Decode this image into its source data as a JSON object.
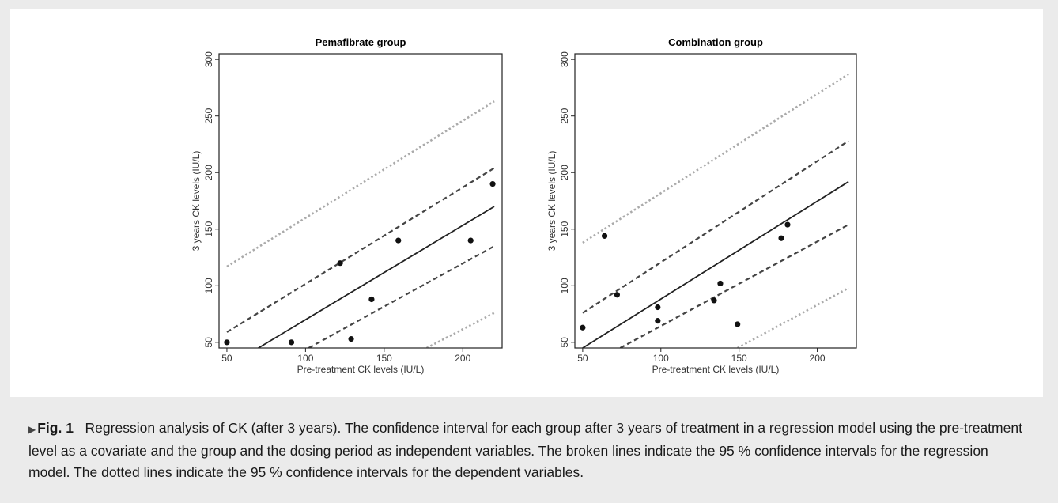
{
  "caption": {
    "marker": "▶",
    "label": "Fig. 1",
    "text": "Regression analysis of CK (after 3 years). The confidence interval for each group after 3 years of treatment in a regression model using the pre-treatment level as a covariate and the group and the dosing period as independent variables. The broken lines indicate the 95 % confidence intervals for the regression model. The dotted lines indicate the 95 % confidence intervals for the dependent variables."
  },
  "chart_data": [
    {
      "type": "scatter",
      "title": "Pemafibrate group",
      "xlabel": "Pre-treatment CK levels (IU/L)",
      "ylabel": "3 years CK levels (IU/L)",
      "xlim": [
        45,
        225
      ],
      "ylim": [
        45,
        305
      ],
      "xticks": [
        50,
        100,
        150,
        200
      ],
      "yticks": [
        50,
        100,
        150,
        200,
        250,
        300
      ],
      "grid": false,
      "points": [
        {
          "x": 50,
          "y": 50
        },
        {
          "x": 91,
          "y": 50
        },
        {
          "x": 122,
          "y": 120
        },
        {
          "x": 129,
          "y": 53
        },
        {
          "x": 142,
          "y": 88
        },
        {
          "x": 159,
          "y": 140
        },
        {
          "x": 205,
          "y": 140
        },
        {
          "x": 219,
          "y": 190
        }
      ],
      "lines": {
        "fit": [
          [
            70,
            45
          ],
          [
            220,
            170
          ]
        ],
        "ci_upper": [
          [
            50,
            59
          ],
          [
            220,
            204
          ]
        ],
        "ci_lower": [
          [
            102,
            45
          ],
          [
            220,
            135
          ]
        ],
        "pi_upper": [
          [
            50,
            117
          ],
          [
            220,
            263
          ]
        ],
        "pi_lower": [
          [
            177,
            45
          ],
          [
            220,
            76
          ]
        ]
      }
    },
    {
      "type": "scatter",
      "title": "Combination group",
      "xlabel": "Pre-treatment CK levels (IU/L)",
      "ylabel": "3 years CK levels (IU/L)",
      "xlim": [
        45,
        225
      ],
      "ylim": [
        45,
        305
      ],
      "xticks": [
        50,
        100,
        150,
        200
      ],
      "yticks": [
        50,
        100,
        150,
        200,
        250,
        300
      ],
      "grid": false,
      "points": [
        {
          "x": 50,
          "y": 63
        },
        {
          "x": 64,
          "y": 144
        },
        {
          "x": 72,
          "y": 92
        },
        {
          "x": 98,
          "y": 81
        },
        {
          "x": 98,
          "y": 69
        },
        {
          "x": 134,
          "y": 87
        },
        {
          "x": 138,
          "y": 102
        },
        {
          "x": 149,
          "y": 66
        },
        {
          "x": 177,
          "y": 142
        },
        {
          "x": 181,
          "y": 154
        }
      ],
      "lines": {
        "fit": [
          [
            50,
            45
          ],
          [
            220,
            192
          ]
        ],
        "ci_upper": [
          [
            50,
            76
          ],
          [
            220,
            228
          ]
        ],
        "ci_lower": [
          [
            74,
            45
          ],
          [
            220,
            154
          ]
        ],
        "pi_upper": [
          [
            50,
            138
          ],
          [
            220,
            287
          ]
        ],
        "pi_lower": [
          [
            149,
            45
          ],
          [
            220,
            98
          ]
        ]
      }
    }
  ]
}
